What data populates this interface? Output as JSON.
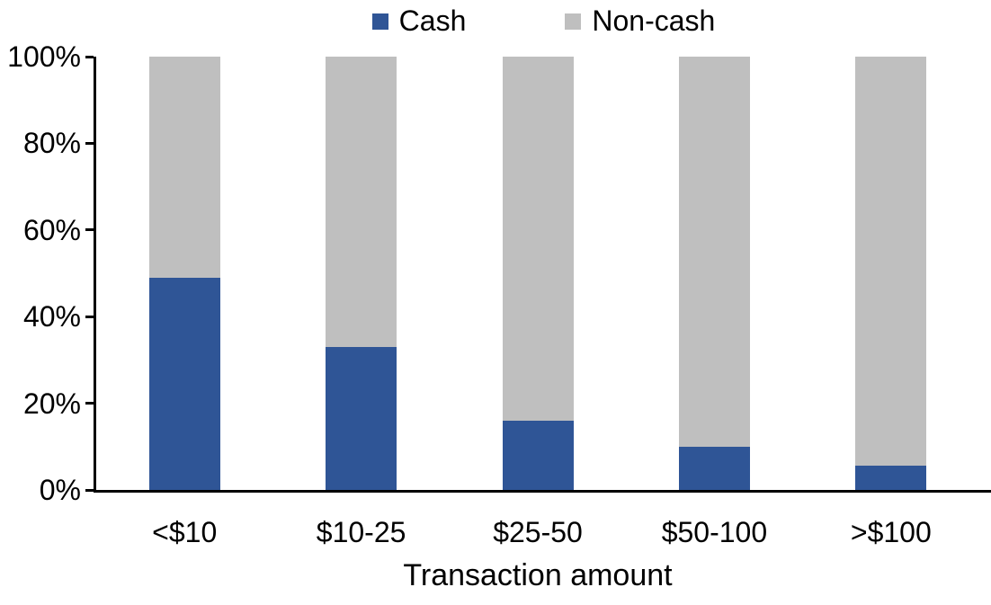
{
  "chart_data": {
    "type": "bar",
    "stacked": true,
    "percent_stacked": true,
    "title": "",
    "xlabel": "Transaction amount",
    "ylabel": "",
    "categories": [
      "<$10",
      "$10-25",
      "$25-50",
      "$50-100",
      ">$100"
    ],
    "series": [
      {
        "name": "Cash",
        "color": "#2F5596",
        "values": [
          49,
          33,
          16,
          10,
          5.5
        ]
      },
      {
        "name": "Non-cash",
        "color": "#BFBFBF",
        "values": [
          51,
          67,
          84,
          90,
          94.5
        ]
      }
    ],
    "y_axis": {
      "min": 0,
      "max": 100,
      "tick_labels_top_to_bottom": [
        "100%",
        "80%",
        "60%",
        "40%",
        "20%",
        "0%"
      ]
    },
    "legend_position": "top-center",
    "grid": false,
    "axis_color": "#000000",
    "text_color": "#000000",
    "background": "#FFFFFF"
  }
}
